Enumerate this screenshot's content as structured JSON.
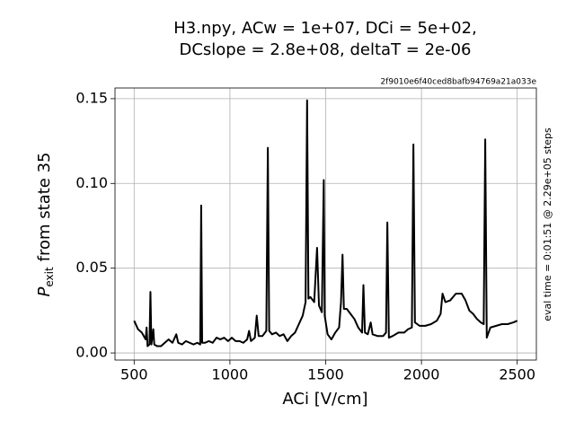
{
  "chart_data": {
    "type": "line",
    "title": [
      "H3.npy, ACw = 1e+07,  DCi = 5e+02,",
      "DCslope = 2.8e+08,  deltaT = 2e-06"
    ],
    "hash": "2f9010e6f40ced8bafb94769a21a033e",
    "xlabel": "ACi [V/cm]",
    "ylabel": {
      "main": "P",
      "sub": "exit",
      "rest": "from state 35"
    },
    "right_label": "eval time = 0:01:51 @ 2.29e+05 steps",
    "color": "#000000",
    "grid": true,
    "xlim": [
      400,
      2600
    ],
    "ylim": [
      -0.0042,
      0.1563
    ],
    "xticks": [
      500,
      1000,
      1500,
      2000,
      2500
    ],
    "yticks": [
      {
        "value": 0,
        "label": "0.00"
      },
      0.05,
      {
        "value": 0.1,
        "label": "0.10"
      },
      0.15
    ],
    "x": [
      500,
      520,
      540,
      560,
      565,
      570,
      580,
      585,
      590,
      600,
      605,
      620,
      640,
      660,
      680,
      700,
      720,
      730,
      750,
      770,
      790,
      810,
      830,
      845,
      850,
      855,
      870,
      890,
      910,
      930,
      950,
      970,
      990,
      1010,
      1030,
      1050,
      1070,
      1090,
      1100,
      1110,
      1130,
      1140,
      1150,
      1170,
      1190,
      1198,
      1205,
      1220,
      1240,
      1260,
      1280,
      1300,
      1320,
      1340,
      1360,
      1380,
      1395,
      1403,
      1410,
      1420,
      1440,
      1455,
      1465,
      1480,
      1490,
      1495,
      1510,
      1530,
      1550,
      1570,
      1580,
      1588,
      1595,
      1610,
      1630,
      1650,
      1670,
      1690,
      1697,
      1705,
      1720,
      1735,
      1745,
      1770,
      1800,
      1815,
      1822,
      1830,
      1850,
      1880,
      1910,
      1930,
      1950,
      1958,
      1966,
      1990,
      2020,
      2050,
      2080,
      2100,
      2110,
      2125,
      2150,
      2180,
      2210,
      2230,
      2250,
      2270,
      2290,
      2310,
      2325,
      2333,
      2341,
      2360,
      2390,
      2420,
      2450,
      2480,
      2500
    ],
    "values": [
      0.019,
      0.014,
      0.012,
      0.008,
      0.015,
      0.004,
      0.005,
      0.036,
      0.005,
      0.014,
      0.005,
      0.004,
      0.004,
      0.006,
      0.008,
      0.006,
      0.011,
      0.006,
      0.005,
      0.007,
      0.006,
      0.005,
      0.006,
      0.005,
      0.087,
      0.006,
      0.006,
      0.007,
      0.006,
      0.009,
      0.008,
      0.009,
      0.007,
      0.009,
      0.007,
      0.007,
      0.006,
      0.008,
      0.013,
      0.007,
      0.009,
      0.022,
      0.01,
      0.01,
      0.013,
      0.121,
      0.013,
      0.011,
      0.012,
      0.01,
      0.011,
      0.007,
      0.01,
      0.012,
      0.017,
      0.022,
      0.03,
      0.149,
      0.032,
      0.033,
      0.03,
      0.062,
      0.028,
      0.024,
      0.102,
      0.022,
      0.011,
      0.008,
      0.012,
      0.015,
      0.03,
      0.058,
      0.026,
      0.026,
      0.023,
      0.02,
      0.015,
      0.012,
      0.04,
      0.012,
      0.011,
      0.018,
      0.011,
      0.01,
      0.01,
      0.012,
      0.077,
      0.009,
      0.01,
      0.012,
      0.012,
      0.014,
      0.015,
      0.123,
      0.018,
      0.016,
      0.016,
      0.017,
      0.019,
      0.023,
      0.035,
      0.03,
      0.031,
      0.035,
      0.035,
      0.031,
      0.025,
      0.023,
      0.02,
      0.018,
      0.017,
      0.126,
      0.009,
      0.015,
      0.016,
      0.017,
      0.017,
      0.018,
      0.019
    ]
  }
}
